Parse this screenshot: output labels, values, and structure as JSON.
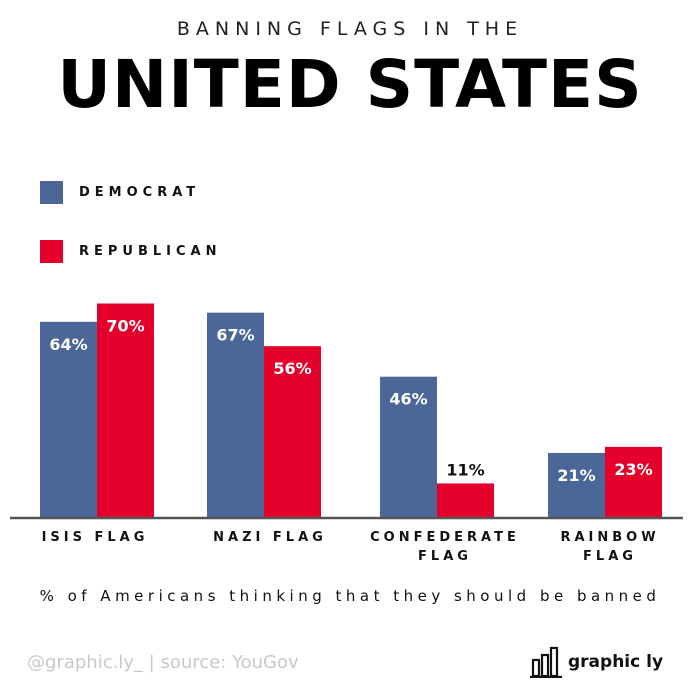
{
  "header": {
    "supertitle": "BANNING FLAGS IN THE",
    "title": "UNITED STATES"
  },
  "colors": {
    "democrat": "#4a6797",
    "republican": "#e4002b",
    "axis": "#555555"
  },
  "chart_data": {
    "type": "bar",
    "title": "UNITED STATES",
    "categories": [
      "ISIS FLAG",
      "NAZI FLAG",
      "CONFEDERATE FLAG",
      "RAINBOW FLAG"
    ],
    "series": [
      {
        "name": "DEMOCRAT",
        "values": [
          64,
          67,
          46,
          21
        ],
        "labels": [
          "64%",
          "67%",
          "46%",
          "21%"
        ]
      },
      {
        "name": "REPUBLICAN",
        "values": [
          70,
          56,
          11,
          23
        ],
        "labels": [
          "70%",
          "56%",
          "11%",
          "23%"
        ]
      }
    ],
    "ylim": [
      0,
      75
    ],
    "grid": false,
    "legend": "top-left",
    "xlabel": "% of Americans thinking that they should be banned",
    "ylabel": ""
  },
  "legend": {
    "democrat": "DEMOCRAT",
    "republican": "REPUBLICAN"
  },
  "category_lines": [
    [
      "ISIS FLAG"
    ],
    [
      "NAZI FLAG"
    ],
    [
      "CONFEDERATE",
      "FLAG"
    ],
    [
      "RAINBOW",
      "FLAG"
    ]
  ],
  "footer": {
    "credit": "@graphic.ly_ | source: YouGov",
    "brand": "graphic ly",
    "brand_icon": "bar-chart-logo-icon"
  }
}
